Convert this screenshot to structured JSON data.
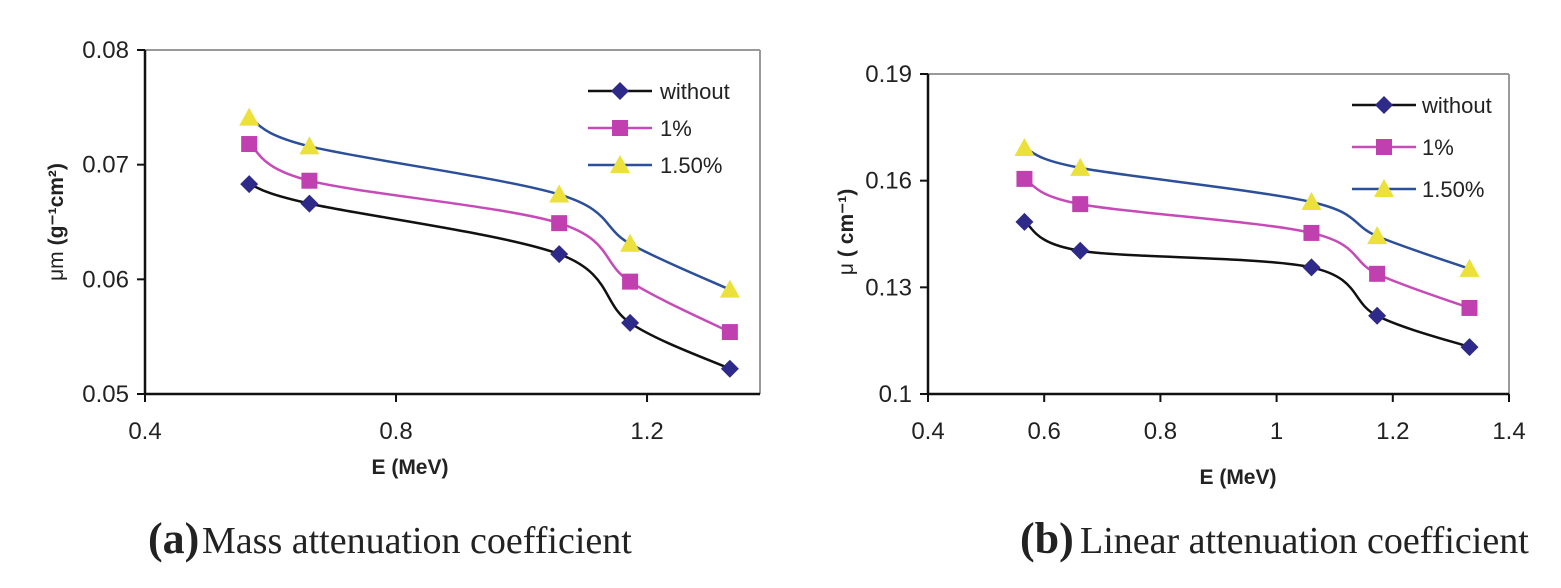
{
  "chart_data": [
    {
      "id": "a",
      "type": "line",
      "title": "",
      "caption_letter": "(a)",
      "caption_text": "Mass attenuation coefficient",
      "xlabel": "E (MeV)",
      "ylabel_symbol": "μm",
      "ylabel_unit": "(g⁻¹cm²)",
      "xlim": [
        0.4,
        1.38
      ],
      "ylim": [
        0.05,
        0.08
      ],
      "xticks": [
        0.4,
        0.8,
        1.2
      ],
      "xtick_labels": [
        "0.4",
        "0.8",
        "1.2"
      ],
      "yticks": [
        0.05,
        0.06,
        0.07,
        0.08
      ],
      "ytick_labels": [
        "0.05",
        "0.06",
        "0.07",
        "0.08"
      ],
      "grid": false,
      "legend_position": "top-right",
      "x": [
        0.566,
        0.662,
        1.06,
        1.173,
        1.332
      ],
      "series": [
        {
          "name": "without",
          "marker": "diamond",
          "line_color": "#111111",
          "marker_color": "#2e2a8a",
          "values": [
            0.0683,
            0.0666,
            0.0622,
            0.0562,
            0.0522
          ]
        },
        {
          "name": "1%",
          "marker": "square",
          "line_color": "#c64bb8",
          "marker_color": "#c040b0",
          "values": [
            0.0718,
            0.0686,
            0.0649,
            0.0598,
            0.0554
          ]
        },
        {
          "name": "1.50%",
          "marker": "triangle",
          "line_color": "#2c4f9a",
          "marker_color": "#ece03a",
          "values": [
            0.0741,
            0.0716,
            0.0674,
            0.0631,
            0.0591
          ]
        }
      ]
    },
    {
      "id": "b",
      "type": "line",
      "title": "",
      "caption_letter": "(b)",
      "caption_text": "Linear attenuation coefficient",
      "xlabel": "E (MeV)",
      "ylabel_symbol": "μ",
      "ylabel_unit": "( cm⁻¹)",
      "xlim": [
        0.4,
        1.4
      ],
      "ylim": [
        0.1,
        0.19
      ],
      "xticks": [
        0.4,
        0.6,
        0.8,
        1.0,
        1.2,
        1.4
      ],
      "xtick_labels": [
        "0.4",
        "0.6",
        "0.8",
        "1",
        "1.2",
        "1.4"
      ],
      "yticks": [
        0.1,
        0.13,
        0.16,
        0.19
      ],
      "ytick_labels": [
        "0.1",
        "0.13",
        "0.16",
        "0.19"
      ],
      "grid": false,
      "legend_position": "top-right",
      "x": [
        0.566,
        0.662,
        1.06,
        1.173,
        1.332
      ],
      "series": [
        {
          "name": "without",
          "marker": "diamond",
          "line_color": "#111111",
          "marker_color": "#2e2a8a",
          "values": [
            0.1484,
            0.1403,
            0.1356,
            0.122,
            0.1132
          ]
        },
        {
          "name": "1%",
          "marker": "square",
          "line_color": "#c64bb8",
          "marker_color": "#c040b0",
          "values": [
            0.1605,
            0.1534,
            0.1453,
            0.1338,
            0.1242
          ]
        },
        {
          "name": "1.50%",
          "marker": "triangle",
          "line_color": "#2c4f9a",
          "marker_color": "#ece03a",
          "values": [
            0.1692,
            0.1636,
            0.154,
            0.1444,
            0.1352
          ]
        }
      ]
    }
  ]
}
